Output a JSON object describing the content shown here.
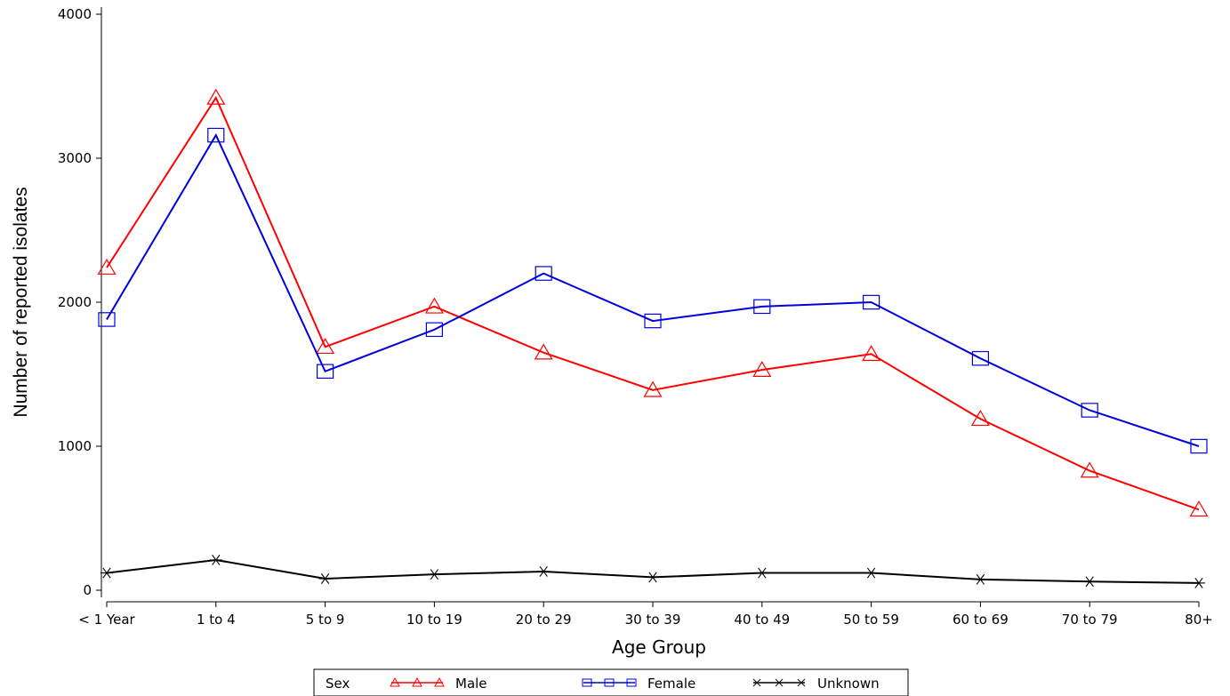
{
  "chart_data": {
    "type": "line",
    "title": "",
    "xlabel": "Age Group",
    "ylabel": "Number of reported isolates",
    "categories": [
      "< 1 Year",
      "1 to 4",
      "5 to 9",
      "10 to 19",
      "20 to 29",
      "30 to 39",
      "40 to 49",
      "50 to 59",
      "60 to 69",
      "70 to 79",
      "80+"
    ],
    "ylim": [
      0,
      4000
    ],
    "yticks": [
      "0",
      "1000",
      "2000",
      "3000",
      "4000"
    ],
    "grid": false,
    "legend": {
      "title": "Sex",
      "position": "bottom-center"
    },
    "series": [
      {
        "name": "Male",
        "color": "#ff0000",
        "marker": "triangle",
        "values": [
          2240,
          3420,
          1690,
          1970,
          1650,
          1390,
          1530,
          1640,
          1190,
          830,
          560
        ]
      },
      {
        "name": "Female",
        "color": "#0000dd",
        "marker": "square",
        "values": [
          1880,
          3160,
          1520,
          1810,
          2200,
          1870,
          1970,
          2000,
          1610,
          1250,
          1000
        ]
      },
      {
        "name": "Unknown",
        "color": "#000000",
        "marker": "star",
        "values": [
          120,
          210,
          80,
          110,
          130,
          90,
          120,
          120,
          75,
          60,
          50
        ]
      }
    ]
  }
}
